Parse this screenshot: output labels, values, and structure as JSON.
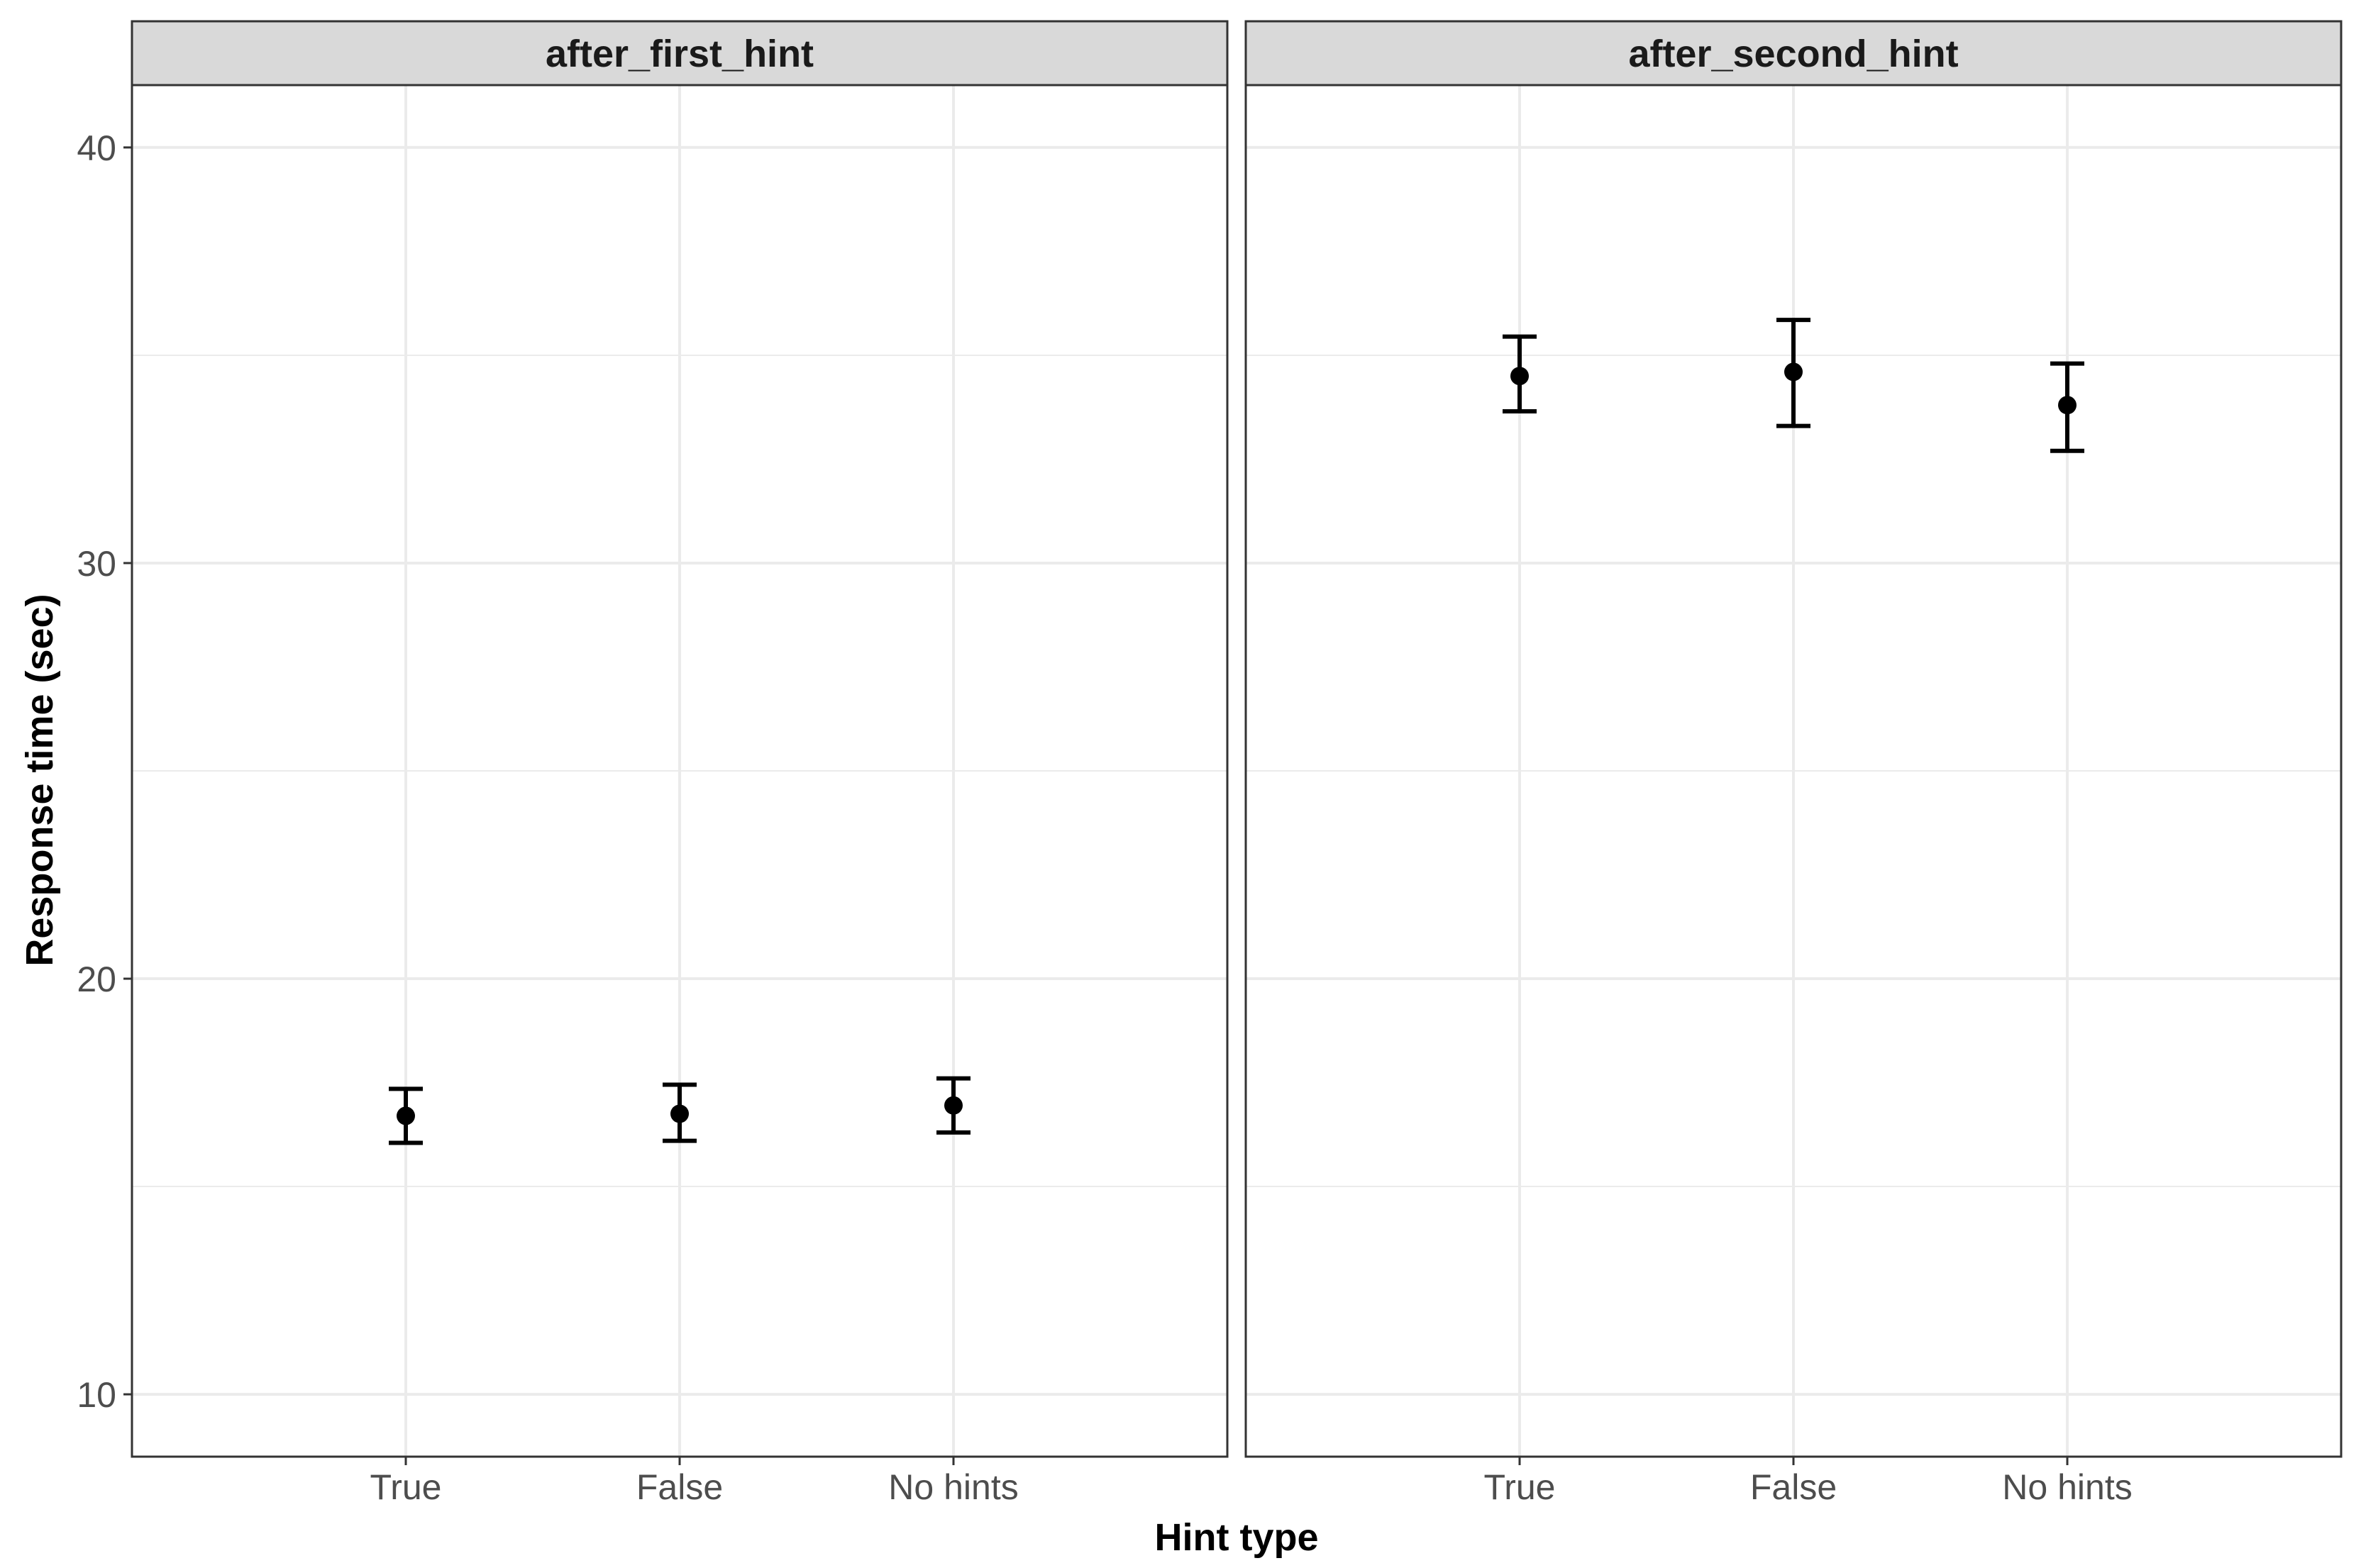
{
  "chart_data": {
    "type": "scatter",
    "subtype": "point-with-errorbars",
    "xlabel": "Hint type",
    "ylabel": "Response time (sec)",
    "categories": [
      "True",
      "False",
      "No hints"
    ],
    "ylim": [
      8.5,
      41.5
    ],
    "yticks": [
      10,
      20,
      30,
      40
    ],
    "grid": true,
    "theme_colors": {
      "strip_bg": "#d9d9d9",
      "grid": "#ebebeb",
      "border": "#333333",
      "marks": "#000000"
    },
    "panels": [
      {
        "label": "after_first_hint",
        "points": [
          {
            "x": "True",
            "y": 16.7,
            "ymin": 16.05,
            "ymax": 17.35
          },
          {
            "x": "False",
            "y": 16.75,
            "ymin": 16.1,
            "ymax": 17.45
          },
          {
            "x": "No hints",
            "y": 16.95,
            "ymin": 16.3,
            "ymax": 17.6
          }
        ]
      },
      {
        "label": "after_second_hint",
        "points": [
          {
            "x": "True",
            "y": 34.5,
            "ymin": 33.65,
            "ymax": 35.45
          },
          {
            "x": "False",
            "y": 34.6,
            "ymin": 33.3,
            "ymax": 35.85
          },
          {
            "x": "No hints",
            "y": 33.8,
            "ymin": 32.7,
            "ymax": 34.8
          }
        ]
      }
    ]
  }
}
